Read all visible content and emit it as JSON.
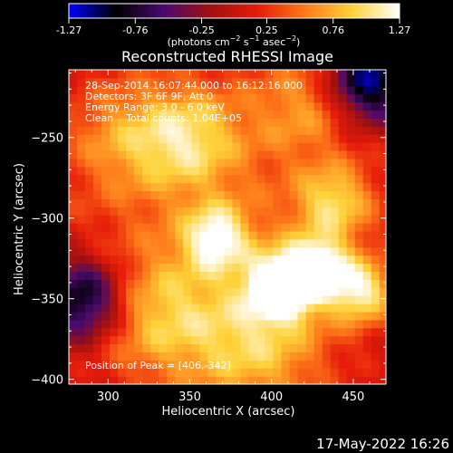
{
  "colorbar": {
    "tick_labels": [
      "-1.27",
      "-0.76",
      "-0.25",
      "0.25",
      "0.76",
      "1.27"
    ],
    "tick_values": [
      -1.27,
      -0.76,
      -0.25,
      0.25,
      0.76,
      1.27
    ],
    "range": [
      -1.27,
      1.27
    ],
    "units_prefix": "(photons cm",
    "units_sup1": "−2",
    "units_mid": " s",
    "units_sup2": "−1",
    "units_asec": " asec",
    "units_sup3": "−2",
    "units_suffix": ")",
    "colormap_stops": [
      "#0000ff",
      "#000000",
      "#4a0a6e",
      "#a01010",
      "#e61c0a",
      "#ff7a1a",
      "#ffd23a",
      "#ffffff"
    ]
  },
  "chart_data": {
    "type": "heatmap",
    "title": "Reconstructed RHESSI Image",
    "xlabel": "Heliocentric X (arcsec)",
    "ylabel": "Heliocentric Y (arcsec)",
    "xlim": [
      276,
      470
    ],
    "ylim": [
      -403,
      -208
    ],
    "x_ticks": [
      300,
      350,
      400,
      450
    ],
    "y_ticks": [
      -250,
      -300,
      -350,
      -400
    ],
    "x_tick_labels": [
      "300",
      "350",
      "400",
      "450"
    ],
    "y_tick_labels": [
      "−250",
      "−300",
      "−350",
      "−400"
    ],
    "annotations": [
      "28-Sep-2014 16:07:44.000 to 16:12:16.000",
      "Detectors: 3F 6F 9F, Att 0",
      "Energy Range: 3.0 - 6.0 keV",
      "Clean    Total counts: 1.04E+05"
    ],
    "peak_label": "Position of Peak = [406,-342]",
    "peak": [
      406,
      -342
    ],
    "sources": [
      {
        "x": 406,
        "y": -342,
        "sigma": 14,
        "amp": 1.0
      },
      {
        "x": 428,
        "y": -330,
        "sigma": 13,
        "amp": 0.85
      },
      {
        "x": 438,
        "y": -290,
        "sigma": 16,
        "amp": 0.55
      },
      {
        "x": 455,
        "y": -345,
        "sigma": 14,
        "amp": 0.7
      },
      {
        "x": 366,
        "y": -312,
        "sigma": 14,
        "amp": 0.65
      },
      {
        "x": 350,
        "y": -250,
        "sigma": 22,
        "amp": 0.5
      },
      {
        "x": 330,
        "y": -360,
        "sigma": 28,
        "amp": 0.45
      },
      {
        "x": 390,
        "y": -380,
        "sigma": 30,
        "amp": 0.5
      },
      {
        "x": 310,
        "y": -250,
        "sigma": 25,
        "amp": 0.35
      },
      {
        "x": 420,
        "y": -230,
        "sigma": 22,
        "amp": 0.35
      }
    ],
    "background": 0.42,
    "dark_regions": [
      {
        "x": 460,
        "y": -215,
        "sigma": 18,
        "amp": -0.9
      },
      {
        "x": 286,
        "y": -350,
        "sigma": 18,
        "amp": -0.85
      }
    ]
  },
  "footer": {
    "timestamp": "17-May-2022 16:26"
  }
}
